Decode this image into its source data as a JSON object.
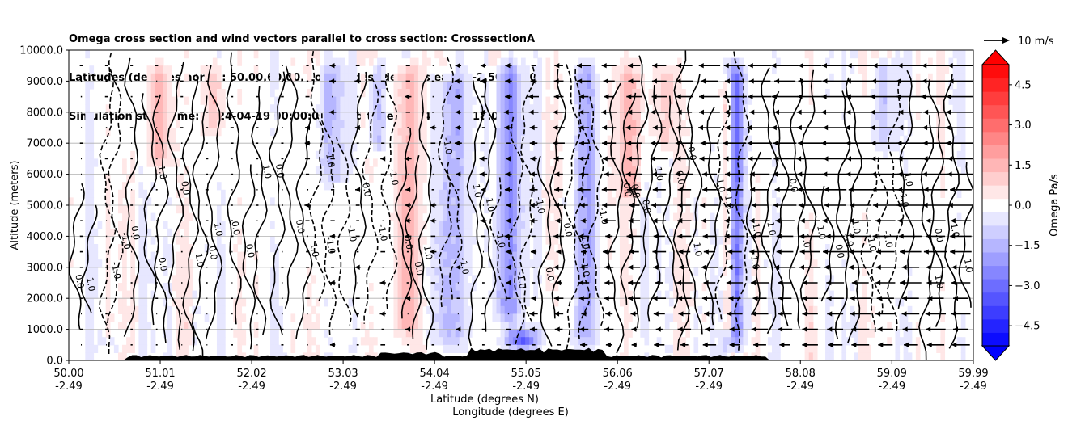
{
  "title_lines": [
    "Omega cross section and wind vectors parallel to cross section: CrosssectionA",
    "Latitudes (degrees north): 50.00,60.00, Longitudes (degrees east): -2.50,-2.50",
    "Simulation start time: 2024-04-19 00:00:00, Valid time: 2024-04-20 18:00:00"
  ],
  "chart_data": {
    "type": "heatmap",
    "description_type": "contourf cross-section with contour lines and wind quiver",
    "xlabel_line1": "Latitude (degrees N)",
    "xlabel_line2": "Longitude (degrees E)",
    "ylabel": "Altitude (meters)",
    "ylim": [
      0,
      10000
    ],
    "xlim": [
      50.0,
      59.99
    ],
    "y_ticks": [
      "0.0",
      "1000.0",
      "2000.0",
      "3000.0",
      "4000.0",
      "5000.0",
      "6000.0",
      "7000.0",
      "8000.0",
      "9000.0",
      "10000.0"
    ],
    "y_tick_values": [
      0,
      1000,
      2000,
      3000,
      4000,
      5000,
      6000,
      7000,
      8000,
      9000,
      10000
    ],
    "x_ticks": [
      {
        "lat": "50.00",
        "lon": "-2.49",
        "value": 50.0
      },
      {
        "lat": "51.01",
        "lon": "-2.49",
        "value": 51.01
      },
      {
        "lat": "52.02",
        "lon": "-2.49",
        "value": 52.02
      },
      {
        "lat": "53.03",
        "lon": "-2.49",
        "value": 53.03
      },
      {
        "lat": "54.04",
        "lon": "-2.49",
        "value": 54.04
      },
      {
        "lat": "55.05",
        "lon": "-2.49",
        "value": 55.05
      },
      {
        "lat": "56.06",
        "lon": "-2.49",
        "value": 56.06
      },
      {
        "lat": "57.07",
        "lon": "-2.49",
        "value": 57.07
      },
      {
        "lat": "58.08",
        "lon": "-2.49",
        "value": 58.08
      },
      {
        "lat": "59.09",
        "lon": "-2.49",
        "value": 59.09
      },
      {
        "lat": "59.99",
        "lon": "-2.49",
        "value": 59.99
      }
    ],
    "grid": "horizontal",
    "colorbar": {
      "label": "Omega Pa/s",
      "range": [
        -5.25,
        5.25
      ],
      "ticks": [
        "4.5",
        "3.0",
        "1.5",
        "0.0",
        "−1.5",
        "−3.0",
        "−4.5"
      ],
      "tick_values": [
        4.5,
        3.0,
        1.5,
        0.0,
        -1.5,
        -3.0,
        -4.5
      ],
      "cmap": "bwr",
      "colors": {
        "negative": "#0000ff",
        "zero": "#ffffff",
        "positive": "#ff0000"
      }
    },
    "quiver_key": {
      "label": "10 m/s",
      "speed_ms": 10
    },
    "contour_label_values": [
      "0.0",
      "1.0",
      "-1.0",
      "2.0",
      "-2.0"
    ],
    "features": [
      {
        "lat": 53.75,
        "alt_bottom": 500,
        "alt_top": 9800,
        "omega": 1.8,
        "width_deg": 0.12
      },
      {
        "lat": 54.2,
        "alt_bottom": 200,
        "alt_top": 9500,
        "omega": -1.4,
        "width_deg": 0.18
      },
      {
        "lat": 54.85,
        "alt_bottom": 1000,
        "alt_top": 9800,
        "omega": -2.2,
        "width_deg": 0.14
      },
      {
        "lat": 55.0,
        "alt_bottom": 200,
        "alt_top": 1200,
        "omega": -4.5,
        "width_deg": 0.18
      },
      {
        "lat": 55.7,
        "alt_bottom": 200,
        "alt_top": 9800,
        "omega": -1.5,
        "width_deg": 0.12
      },
      {
        "lat": 57.35,
        "alt_bottom": 200,
        "alt_top": 9800,
        "omega": -3.5,
        "width_deg": 0.1
      },
      {
        "lat": 57.28,
        "alt_bottom": 500,
        "alt_top": 9500,
        "omega": 2.5,
        "width_deg": 0.07
      },
      {
        "lat": 51.0,
        "alt_bottom": 6000,
        "alt_top": 9800,
        "omega": 1.5,
        "width_deg": 0.12
      },
      {
        "lat": 51.6,
        "alt_bottom": 7000,
        "alt_top": 9800,
        "omega": 1.2,
        "width_deg": 0.1
      },
      {
        "lat": 52.9,
        "alt_bottom": 5500,
        "alt_top": 9800,
        "omega": -1.2,
        "width_deg": 0.15
      },
      {
        "lat": 53.4,
        "alt_bottom": 6500,
        "alt_top": 9800,
        "omega": -1.2,
        "width_deg": 0.1
      },
      {
        "lat": 56.2,
        "alt_bottom": 5000,
        "alt_top": 9800,
        "omega": 1.2,
        "width_deg": 0.15
      },
      {
        "lat": 56.6,
        "alt_bottom": 6500,
        "alt_top": 9800,
        "omega": 1.0,
        "width_deg": 0.12
      },
      {
        "lat": 59.0,
        "alt_bottom": 6500,
        "alt_top": 9800,
        "omega": -1.2,
        "width_deg": 0.12
      },
      {
        "lat": 53.8,
        "alt_bottom": 200,
        "alt_top": 800,
        "omega": 1.5,
        "width_deg": 0.1
      },
      {
        "lat": 50.45,
        "alt_bottom": 200,
        "alt_top": 800,
        "omega": -1.2,
        "width_deg": 0.1
      }
    ]
  }
}
